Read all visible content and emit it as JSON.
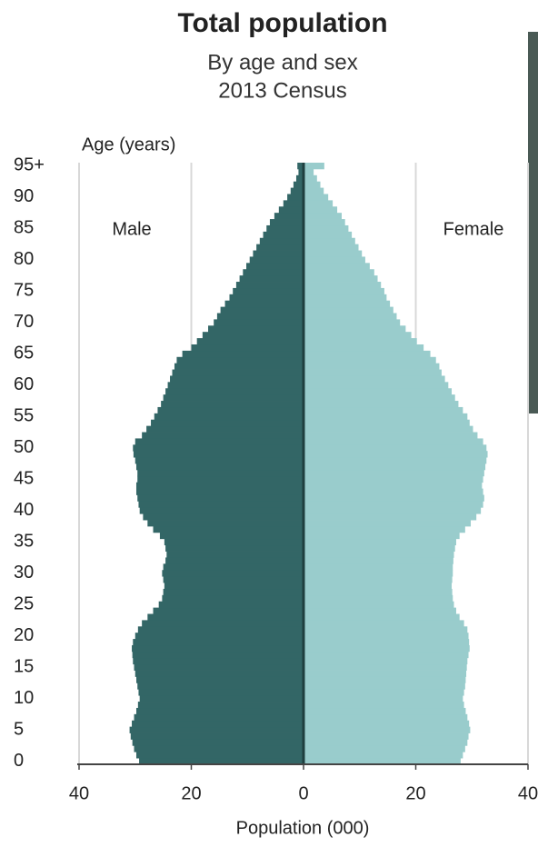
{
  "chart_data": {
    "type": "pyramid",
    "title": "Total population",
    "subtitle": "By age and sex",
    "subtitle2": "2013 Census",
    "y_label": "Age (years)",
    "x_label": "Population (000)",
    "y": [
      0,
      1,
      2,
      3,
      4,
      5,
      6,
      7,
      8,
      9,
      10,
      11,
      12,
      13,
      14,
      15,
      16,
      17,
      18,
      19,
      20,
      21,
      22,
      23,
      24,
      25,
      26,
      27,
      28,
      29,
      30,
      31,
      32,
      33,
      34,
      35,
      36,
      37,
      38,
      39,
      40,
      41,
      42,
      43,
      44,
      45,
      46,
      47,
      48,
      49,
      50,
      51,
      52,
      53,
      54,
      55,
      56,
      57,
      58,
      59,
      60,
      61,
      62,
      63,
      64,
      65,
      66,
      67,
      68,
      69,
      70,
      71,
      72,
      73,
      74,
      75,
      76,
      77,
      78,
      79,
      80,
      81,
      82,
      83,
      84,
      85,
      86,
      87,
      88,
      89,
      90,
      91,
      92,
      93,
      94,
      95
    ],
    "series": [
      {
        "name": "Male",
        "color": "#336666",
        "side": "left",
        "values": [
          29.3,
          29.8,
          30.2,
          30.5,
          30.8,
          31.0,
          30.6,
          30.2,
          29.8,
          29.5,
          29.2,
          29.4,
          29.6,
          29.8,
          30.0,
          30.2,
          30.4,
          30.5,
          30.6,
          30.4,
          30.0,
          29.5,
          28.8,
          27.8,
          26.8,
          25.8,
          25.2,
          25.0,
          24.8,
          25.0,
          25.2,
          25.0,
          24.6,
          24.4,
          24.6,
          24.8,
          25.6,
          26.8,
          27.8,
          28.6,
          29.2,
          29.4,
          29.6,
          29.8,
          29.8,
          29.6,
          29.6,
          29.8,
          30.0,
          30.3,
          30.4,
          30.0,
          28.8,
          28.0,
          27.2,
          26.6,
          26.0,
          25.4,
          25.0,
          24.6,
          24.2,
          23.8,
          23.4,
          23.0,
          22.6,
          21.6,
          20.0,
          19.0,
          18.0,
          17.0,
          16.0,
          15.4,
          14.8,
          14.0,
          13.2,
          12.6,
          12.0,
          11.4,
          10.8,
          10.2,
          9.6,
          9.0,
          8.4,
          7.8,
          7.2,
          6.6,
          6.0,
          5.2,
          4.4,
          3.6,
          2.9,
          2.3,
          1.8,
          1.3,
          0.9,
          1.1
        ]
      },
      {
        "name": "Female",
        "color": "#99cccc",
        "side": "right",
        "values": [
          28.0,
          28.4,
          28.8,
          29.2,
          29.4,
          29.7,
          29.5,
          29.2,
          28.9,
          28.6,
          28.4,
          28.6,
          28.8,
          28.9,
          29.0,
          29.1,
          29.2,
          29.4,
          29.6,
          29.5,
          29.4,
          29.2,
          28.6,
          27.8,
          27.2,
          26.8,
          26.6,
          26.5,
          26.4,
          26.5,
          26.6,
          26.6,
          26.7,
          26.8,
          27.0,
          27.2,
          27.8,
          28.8,
          29.8,
          30.8,
          31.6,
          32.0,
          32.2,
          32.0,
          31.8,
          32.0,
          32.2,
          32.4,
          32.6,
          32.8,
          32.6,
          32.0,
          31.0,
          30.2,
          29.6,
          29.2,
          28.4,
          27.6,
          27.0,
          26.4,
          25.8,
          25.2,
          24.6,
          24.2,
          23.6,
          22.6,
          21.4,
          20.2,
          19.2,
          18.2,
          17.2,
          16.6,
          16.0,
          15.4,
          14.8,
          14.4,
          13.8,
          13.2,
          12.6,
          11.8,
          11.0,
          10.4,
          9.8,
          9.2,
          8.6,
          8.0,
          7.4,
          6.8,
          6.0,
          5.2,
          4.4,
          3.6,
          3.0,
          2.4,
          1.8,
          3.7
        ]
      }
    ],
    "xlim": [
      -40,
      40
    ],
    "xticks": [
      {
        "value": -40,
        "label": "40"
      },
      {
        "value": -20,
        "label": "20"
      },
      0,
      20,
      40
    ],
    "ylim": [
      -0.5,
      95.5
    ],
    "yticks": [
      0,
      5,
      10,
      15,
      20,
      25,
      30,
      35,
      40,
      45,
      50,
      55,
      60,
      65,
      70,
      75,
      80,
      85,
      90,
      {
        "value": 95,
        "label": "95+"
      }
    ],
    "grid": true
  }
}
